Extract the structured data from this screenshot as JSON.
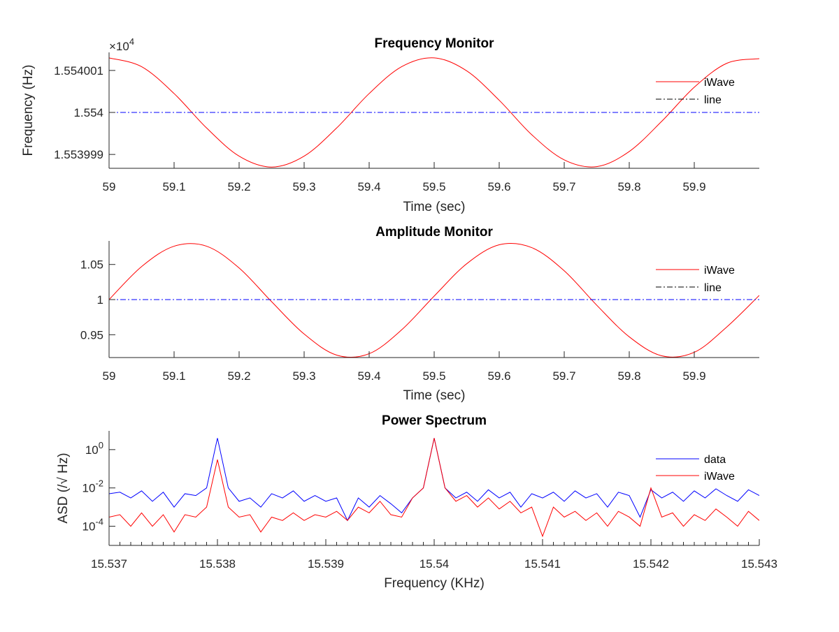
{
  "chart_data": [
    {
      "type": "line",
      "title": "Frequency Monitor",
      "xlabel": "Time (sec)",
      "ylabel": "Frequency (Hz)",
      "y_exponent_label": {
        "base": "×10",
        "exp": "4"
      },
      "xlim": [
        59,
        60
      ],
      "ylim": [
        15539.9867,
        15540.0143
      ],
      "xticks": [
        59,
        59.1,
        59.2,
        59.3,
        59.4,
        59.5,
        59.6,
        59.7,
        59.8,
        59.9
      ],
      "xtick_labels": [
        "59",
        "59.1",
        "59.2",
        "59.3",
        "59.4",
        "59.5",
        "59.6",
        "59.7",
        "59.8",
        "59.9"
      ],
      "yticks": [
        15539.99,
        15540,
        15540.01
      ],
      "ytick_labels": [
        "1.553999",
        "1.554",
        "1.554001"
      ],
      "legend": "top-right",
      "x": [
        59,
        59.05,
        59.1,
        59.15,
        59.2,
        59.25,
        59.3,
        59.35,
        59.4,
        59.45,
        59.5,
        59.55,
        59.6,
        59.65,
        59.7,
        59.75,
        59.8,
        59.85,
        59.9,
        59.95,
        60
      ],
      "series": [
        {
          "name": "iWave",
          "color": "#ff0000",
          "style": "solid",
          "values": [
            15540.013,
            15540.0109,
            15540.0045,
            15539.9963,
            15539.9896,
            15539.987,
            15539.9896,
            15539.9963,
            15540.0045,
            15540.0109,
            15540.013,
            15540.0099,
            15540.0029,
            15539.9947,
            15539.9887,
            15539.9871,
            15539.9907,
            15539.9979,
            15540.006,
            15540.0117,
            15540.0128
          ]
        },
        {
          "name": "line",
          "color": "#0000ff",
          "style": "dashdot",
          "values": [
            15540,
            15540,
            15540,
            15540,
            15540,
            15540,
            15540,
            15540,
            15540,
            15540,
            15540,
            15540,
            15540,
            15540,
            15540,
            15540,
            15540,
            15540,
            15540,
            15540,
            15540
          ]
        }
      ]
    },
    {
      "type": "line",
      "title": "Amplitude Monitor",
      "xlabel": "Time (sec)",
      "ylabel": "",
      "xlim": [
        59,
        60
      ],
      "ylim": [
        0.9175,
        1.0835
      ],
      "xticks": [
        59,
        59.1,
        59.2,
        59.3,
        59.4,
        59.5,
        59.6,
        59.7,
        59.8,
        59.9
      ],
      "xtick_labels": [
        "59",
        "59.1",
        "59.2",
        "59.3",
        "59.4",
        "59.5",
        "59.6",
        "59.7",
        "59.8",
        "59.9"
      ],
      "yticks": [
        0.95,
        1,
        1.05
      ],
      "ytick_labels": [
        "0.95",
        "1",
        "1.05"
      ],
      "legend": "top-right",
      "x": [
        59,
        59.05,
        59.1,
        59.15,
        59.2,
        59.25,
        59.3,
        59.35,
        59.4,
        59.45,
        59.5,
        59.55,
        59.6,
        59.65,
        59.7,
        59.75,
        59.8,
        59.85,
        59.9,
        59.95,
        60
      ],
      "series": [
        {
          "name": "iWave",
          "color": "#ff0000",
          "style": "solid",
          "values": [
            1.0,
            1.047,
            1.076,
            1.076,
            1.045,
            0.997,
            0.951,
            0.921,
            0.923,
            0.957,
            1.005,
            1.051,
            1.078,
            1.074,
            1.041,
            0.992,
            0.947,
            0.92,
            0.925,
            0.961,
            1.006
          ]
        },
        {
          "name": "line",
          "color": "#0000ff",
          "style": "dashdot",
          "values": [
            1,
            1,
            1,
            1,
            1,
            1,
            1,
            1,
            1,
            1,
            1,
            1,
            1,
            1,
            1,
            1,
            1,
            1,
            1,
            1,
            1
          ]
        }
      ]
    },
    {
      "type": "line",
      "title": "Power Spectrum",
      "xlabel": "Frequency (KHz)",
      "ylabel": "ASD (/√ Hz)",
      "yscale": "log",
      "xlim": [
        15.537,
        15.543
      ],
      "ylim": [
        1e-05,
        9.5
      ],
      "xticks": [
        15.537,
        15.538,
        15.539,
        15.54,
        15.541,
        15.542,
        15.543
      ],
      "xtick_labels": [
        "15.537",
        "15.538",
        "15.539",
        "15.54",
        "15.541",
        "15.542",
        "15.543"
      ],
      "yticks": [
        0.0001,
        0.01,
        1
      ],
      "ytick_labels": [
        {
          "base": "10",
          "exp": "-4"
        },
        {
          "base": "10",
          "exp": "-2"
        },
        {
          "base": "10",
          "exp": "0"
        }
      ],
      "legend": "top-right",
      "x_start": 15.537,
      "x_step": 0.0001,
      "series": [
        {
          "name": "data",
          "color": "#0000ff",
          "style": "solid",
          "values": [
            0.005,
            0.006,
            0.003,
            0.007,
            0.002,
            0.006,
            0.001,
            0.005,
            0.004,
            0.01,
            4,
            0.01,
            0.002,
            0.003,
            0.001,
            0.005,
            0.003,
            0.007,
            0.002,
            0.004,
            0.002,
            0.003,
            0.0002,
            0.003,
            0.001,
            0.004,
            0.0015,
            0.0005,
            0.003,
            0.01,
            4,
            0.01,
            0.003,
            0.006,
            0.002,
            0.008,
            0.003,
            0.006,
            0.001,
            0.005,
            0.003,
            0.006,
            0.002,
            0.007,
            0.003,
            0.005,
            0.001,
            0.006,
            0.004,
            0.0003,
            0.008,
            0.003,
            0.006,
            0.002,
            0.007,
            0.003,
            0.009,
            0.004,
            0.002,
            0.008,
            0.004
          ]
        },
        {
          "name": "iWave",
          "color": "#ff0000",
          "style": "solid",
          "values": [
            0.0003,
            0.0004,
            0.0001,
            0.0005,
            0.0001,
            0.0004,
            5e-05,
            0.0004,
            0.0003,
            0.001,
            0.3,
            0.001,
            0.0003,
            0.0004,
            5e-05,
            0.0003,
            0.0002,
            0.0005,
            0.0002,
            0.0004,
            0.0003,
            0.0006,
            0.0002,
            0.001,
            0.0005,
            0.002,
            0.0004,
            0.0003,
            0.003,
            0.01,
            4,
            0.01,
            0.002,
            0.004,
            0.001,
            0.003,
            0.0008,
            0.002,
            0.0005,
            0.001,
            3e-05,
            0.001,
            0.0003,
            0.0006,
            0.0002,
            0.0005,
            0.0001,
            0.0006,
            0.0003,
            0.0001,
            0.01,
            0.0003,
            0.0005,
            0.0001,
            0.0004,
            0.0002,
            0.0008,
            0.0003,
            0.0001,
            0.0006,
            0.0002
          ]
        }
      ]
    }
  ]
}
